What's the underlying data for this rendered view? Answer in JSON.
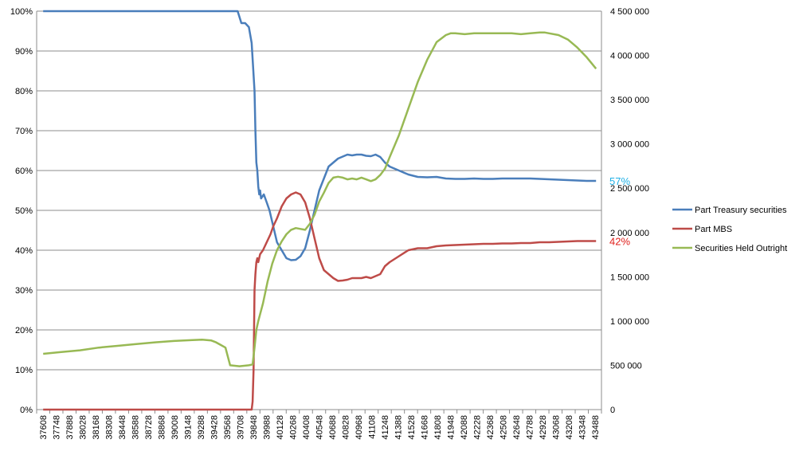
{
  "chart_data": {
    "type": "line",
    "title": "",
    "xlabel": "",
    "ylabel": "",
    "y_left": {
      "min": 0,
      "max": 100,
      "step": 10,
      "unit": "%"
    },
    "y_right": {
      "min": 0,
      "max": 4500000,
      "step": 500000
    },
    "grid": true,
    "legend_position": "right",
    "x_tick_labels": [
      "37608",
      "37748",
      "37888",
      "38028",
      "38168",
      "38308",
      "38448",
      "38588",
      "38728",
      "38868",
      "39008",
      "39148",
      "39288",
      "39428",
      "39568",
      "39708",
      "39848",
      "39988",
      "40128",
      "40268",
      "40408",
      "40548",
      "40688",
      "40828",
      "40968",
      "41108",
      "41248",
      "41388",
      "41528",
      "41668",
      "41808",
      "41948",
      "42088",
      "42228",
      "42368",
      "42508",
      "42648",
      "42788",
      "42928",
      "43068",
      "43208",
      "43348",
      "43488"
    ],
    "y_left_tick_labels": [
      "0%",
      "10%",
      "20%",
      "30%",
      "40%",
      "50%",
      "60%",
      "70%",
      "80%",
      "90%",
      "100%"
    ],
    "y_right_tick_labels": [
      "0",
      "500 000",
      "1 000 000",
      "1 500 000",
      "2 000 000",
      "2 500 000",
      "3 000 000",
      "3 500 000",
      "4 000 000",
      "4 500 000"
    ],
    "series": [
      {
        "name": "Part Treasury securities",
        "color": "#4a7ebb",
        "axis": "left",
        "x": [
          37608,
          39680,
          39720,
          39760,
          39800,
          39830,
          39860,
          39870,
          39880,
          39890,
          39900,
          39910,
          39920,
          39930,
          39960,
          39990,
          40020,
          40060,
          40100,
          40150,
          40200,
          40250,
          40300,
          40350,
          40400,
          40450,
          40500,
          40550,
          40600,
          40650,
          40700,
          40750,
          40800,
          40850,
          40900,
          40950,
          41000,
          41050,
          41100,
          41150,
          41200,
          41250,
          41300,
          41400,
          41500,
          41600,
          41700,
          41800,
          41900,
          42000,
          42100,
          42200,
          42300,
          42400,
          42500,
          42600,
          42700,
          42800,
          42900,
          43000,
          43100,
          43200,
          43300,
          43400,
          43500
        ],
        "values": [
          100,
          100,
          97,
          97,
          96,
          92,
          80,
          70,
          62,
          60,
          56,
          54,
          55,
          53,
          54,
          52,
          50,
          46,
          42,
          40,
          38,
          37.5,
          37.6,
          38.5,
          40.5,
          45,
          50,
          55,
          58,
          61,
          62,
          63,
          63.5,
          64,
          63.8,
          64,
          64,
          63.7,
          63.6,
          64,
          63.4,
          62,
          61,
          60,
          59,
          58.4,
          58.3,
          58.4,
          58,
          57.9,
          57.9,
          58,
          57.9,
          57.9,
          58,
          58,
          58,
          58,
          57.9,
          57.8,
          57.7,
          57.6,
          57.5,
          57.4,
          57.4
        ]
      },
      {
        "name": "Part MBS",
        "color": "#be4b48",
        "axis": "left",
        "x": [
          37608,
          39800,
          39830,
          39840,
          39850,
          39860,
          39870,
          39880,
          39890,
          39900,
          39920,
          39950,
          39990,
          40030,
          40060,
          40100,
          40150,
          40200,
          40250,
          40300,
          40350,
          40400,
          40450,
          40500,
          40550,
          40600,
          40650,
          40700,
          40750,
          40800,
          40850,
          40900,
          40950,
          41000,
          41050,
          41100,
          41150,
          41200,
          41250,
          41300,
          41400,
          41500,
          41600,
          41700,
          41800,
          41900,
          42000,
          42100,
          42200,
          42300,
          42400,
          42500,
          42600,
          42700,
          42800,
          42900,
          43000,
          43100,
          43200,
          43300,
          43400,
          43500
        ],
        "values": [
          0,
          0,
          0,
          2,
          10,
          30,
          34,
          37,
          38,
          37,
          39,
          40,
          42,
          44,
          46,
          48,
          51,
          53,
          54,
          54.5,
          54,
          52,
          48,
          43,
          38,
          35,
          34,
          33,
          32.3,
          32.4,
          32.6,
          33,
          33,
          33,
          33.3,
          33,
          33.5,
          34,
          36,
          37,
          38.5,
          40,
          40.5,
          40.5,
          41,
          41.2,
          41.3,
          41.4,
          41.5,
          41.6,
          41.6,
          41.7,
          41.7,
          41.8,
          41.8,
          42,
          42,
          42.1,
          42.2,
          42.3,
          42.3,
          42.3
        ]
      },
      {
        "name": "Securities Held Outright",
        "color": "#98b954",
        "axis": "right",
        "x": [
          37608,
          37800,
          38000,
          38200,
          38400,
          38600,
          38800,
          39000,
          39200,
          39300,
          39400,
          39450,
          39500,
          39550,
          39600,
          39700,
          39800,
          39840,
          39860,
          39880,
          39900,
          39950,
          40000,
          40050,
          40100,
          40150,
          40200,
          40250,
          40300,
          40350,
          40400,
          40450,
          40500,
          40550,
          40600,
          40650,
          40700,
          40750,
          40800,
          40850,
          40900,
          40950,
          41000,
          41050,
          41100,
          41150,
          41200,
          41250,
          41300,
          41400,
          41500,
          41600,
          41700,
          41800,
          41900,
          41950,
          42000,
          42100,
          42200,
          42300,
          42400,
          42500,
          42600,
          42700,
          42800,
          42900,
          42950,
          43000,
          43100,
          43200,
          43300,
          43400,
          43500
        ],
        "values": [
          630000,
          650000,
          670000,
          700000,
          720000,
          740000,
          760000,
          775000,
          785000,
          790000,
          780000,
          760000,
          730000,
          700000,
          500000,
          490000,
          500000,
          510000,
          700000,
          900000,
          1000000,
          1200000,
          1450000,
          1650000,
          1800000,
          1900000,
          1980000,
          2030000,
          2050000,
          2040000,
          2030000,
          2100000,
          2200000,
          2350000,
          2450000,
          2560000,
          2620000,
          2630000,
          2620000,
          2600000,
          2610000,
          2600000,
          2620000,
          2600000,
          2580000,
          2600000,
          2650000,
          2720000,
          2850000,
          3100000,
          3400000,
          3700000,
          3950000,
          4150000,
          4230000,
          4250000,
          4250000,
          4240000,
          4250000,
          4250000,
          4250000,
          4250000,
          4250000,
          4240000,
          4250000,
          4260000,
          4260000,
          4250000,
          4230000,
          4180000,
          4090000,
          3980000,
          3850000
        ]
      }
    ],
    "annotations": [
      {
        "text": "57%",
        "color": "#1fb0e6",
        "series": "Part Treasury securities"
      },
      {
        "text": "42%",
        "color": "#e0201c",
        "series": "Part MBS"
      }
    ]
  }
}
